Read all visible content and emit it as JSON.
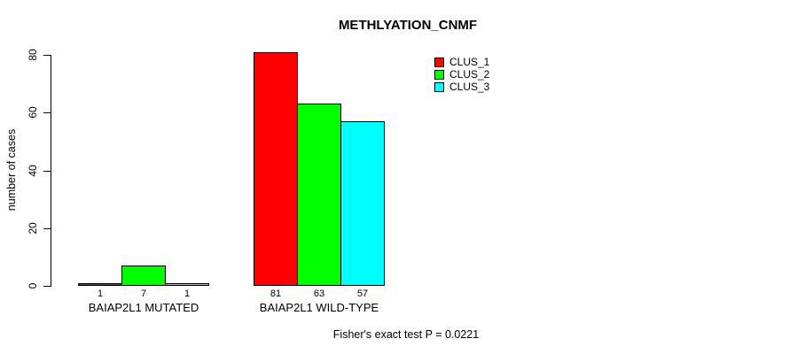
{
  "chart_data": {
    "type": "bar",
    "title": "METHLYATION_CNMF",
    "ylabel": "number of cases",
    "ylim": [
      0,
      80
    ],
    "yticks": [
      0,
      20,
      40,
      60,
      80
    ],
    "categories": [
      "BAIAP2L1 MUTATED",
      "BAIAP2L1 WILD-TYPE"
    ],
    "series": [
      {
        "name": "CLUS_1",
        "color": "#ff0000",
        "values": [
          1,
          81
        ]
      },
      {
        "name": "CLUS_2",
        "color": "#00ff00",
        "values": [
          7,
          63
        ]
      },
      {
        "name": "CLUS_3",
        "color": "#00ffff",
        "values": [
          1,
          57
        ]
      }
    ],
    "bar_value_labels_shown": true,
    "legend_position": "top-right",
    "grid": false,
    "annotation": "Fisher's exact test P = 0.0221"
  }
}
